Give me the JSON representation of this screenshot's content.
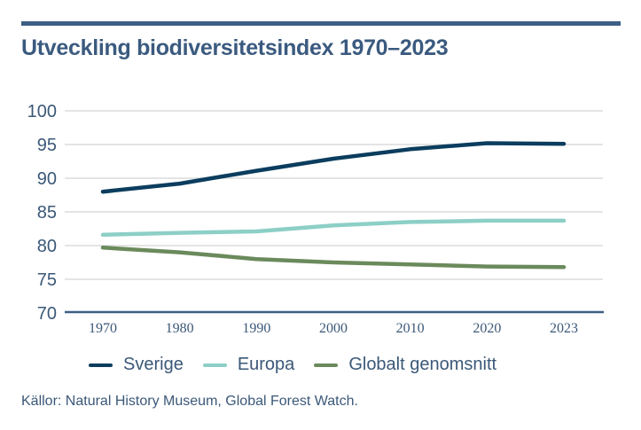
{
  "title": "Utveckling biodiversitetsindex 1970–2023",
  "source": "Källor: Natural History Museum, Global Forest Watch.",
  "colors": {
    "accent_bar": "#3d5f84",
    "text": "#3b5878",
    "grid": "#dcdcdc",
    "axis": "#3d5f84"
  },
  "chart_data": {
    "type": "line",
    "title": "Utveckling biodiversitetsindex 1970–2023",
    "xlabel": "",
    "ylabel": "",
    "categories": [
      "1970",
      "1980",
      "1990",
      "2000",
      "2010",
      "2020",
      "2023"
    ],
    "ylim": [
      70,
      100
    ],
    "yticks": [
      70,
      75,
      80,
      85,
      90,
      95,
      100
    ],
    "grid": true,
    "legend_position": "bottom",
    "series": [
      {
        "name": "Sverige",
        "color": "#0b3d5e",
        "values": [
          88.0,
          89.2,
          91.1,
          92.9,
          94.3,
          95.2,
          95.1
        ]
      },
      {
        "name": "Europa",
        "color": "#8ccfc6",
        "values": [
          81.6,
          81.9,
          82.1,
          83.0,
          83.5,
          83.7,
          83.7
        ]
      },
      {
        "name": "Globalt genomsnitt",
        "color": "#6b8a5c",
        "values": [
          79.7,
          79.0,
          78.0,
          77.5,
          77.2,
          76.9,
          76.8
        ]
      }
    ]
  }
}
